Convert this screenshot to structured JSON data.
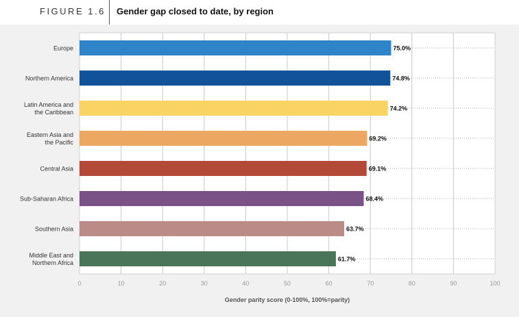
{
  "figure": {
    "label": "FIGURE 1.6",
    "title": "Gender gap closed to date, by region"
  },
  "chart_data": {
    "type": "bar",
    "orientation": "horizontal",
    "categories": [
      [
        "Europe"
      ],
      [
        "Northern America"
      ],
      [
        "Latin America and",
        "the Caribbean"
      ],
      [
        "Eastern Asia and",
        "the Pacific"
      ],
      [
        "Central Asia"
      ],
      [
        "Sub-Saharan Africa"
      ],
      [
        "Southern Asia"
      ],
      [
        "Middle East and",
        "Northern Africa"
      ]
    ],
    "values": [
      75.0,
      74.8,
      74.2,
      69.2,
      69.1,
      68.4,
      63.7,
      61.7
    ],
    "value_labels": [
      "75.0%",
      "74.8%",
      "74.2%",
      "69.2%",
      "69.1%",
      "68.4%",
      "63.7%",
      "61.7%"
    ],
    "colors": [
      "#2f84c9",
      "#11529b",
      "#f9d364",
      "#eca762",
      "#b24a37",
      "#7a5288",
      "#ba8b87",
      "#4b7558"
    ],
    "xlabel": "Gender parity score (0-100%, 100%=parity)",
    "xlim": [
      0,
      100
    ],
    "xticks": [
      0,
      10,
      20,
      30,
      40,
      50,
      60,
      70,
      80,
      90,
      100
    ],
    "grid": "vertical"
  }
}
